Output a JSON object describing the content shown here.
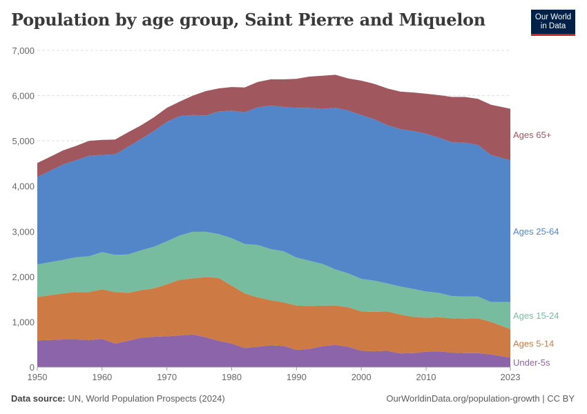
{
  "header": {
    "title": "Population by age group, Saint Pierre and Miquelon",
    "logo_line1": "Our World",
    "logo_line2": "in Data"
  },
  "footer": {
    "source_label": "Data source:",
    "source_text": "UN, World Population Prospects (2024)",
    "url_text": "OurWorldinData.org/population-growth | CC BY"
  },
  "chart_data": {
    "type": "area",
    "stacked": true,
    "title": "Population by age group, Saint Pierre and Miquelon",
    "xlabel": "",
    "ylabel": "",
    "xlim": [
      1950,
      2023
    ],
    "ylim": [
      0,
      7000
    ],
    "grid": true,
    "x_ticks": [
      1950,
      1960,
      1970,
      1980,
      1990,
      2000,
      2010,
      2023
    ],
    "x_tick_labels": [
      "1950",
      "1960",
      "1970",
      "1980",
      "1990",
      "2000",
      "2010",
      "2023"
    ],
    "y_ticks": [
      0,
      1000,
      2000,
      3000,
      4000,
      5000,
      6000,
      7000
    ],
    "y_tick_labels": [
      "0",
      "1,000",
      "2,000",
      "3,000",
      "4,000",
      "5,000",
      "6,000",
      "7,000"
    ],
    "x": [
      1950,
      1952,
      1954,
      1956,
      1958,
      1960,
      1962,
      1964,
      1966,
      1968,
      1970,
      1972,
      1974,
      1976,
      1978,
      1980,
      1982,
      1984,
      1986,
      1988,
      1990,
      1992,
      1994,
      1996,
      1998,
      2000,
      2002,
      2004,
      2006,
      2008,
      2010,
      2012,
      2014,
      2016,
      2018,
      2020,
      2023
    ],
    "series": [
      {
        "name": "Under-5s",
        "label": "Under-5s",
        "color": "#8c64a9",
        "values": [
          590,
          600,
          610,
          610,
          600,
          620,
          520,
          580,
          650,
          670,
          680,
          700,
          720,
          660,
          580,
          520,
          420,
          450,
          480,
          470,
          380,
          400,
          460,
          490,
          450,
          360,
          350,
          360,
          300,
          310,
          340,
          350,
          320,
          310,
          310,
          280,
          210
        ]
      },
      {
        "name": "Ages 5-14",
        "label": "Ages 5-14",
        "color": "#cd7a44",
        "values": [
          960,
          990,
          1020,
          1050,
          1060,
          1100,
          1140,
          1060,
          1050,
          1070,
          1150,
          1230,
          1240,
          1330,
          1390,
          1280,
          1210,
          1090,
          1000,
          960,
          980,
          950,
          900,
          870,
          870,
          870,
          870,
          870,
          860,
          800,
          750,
          750,
          760,
          760,
          770,
          720,
          630
        ]
      },
      {
        "name": "Ages 15-24",
        "label": "Ages 15-24",
        "color": "#78bc9f",
        "values": [
          720,
          730,
          740,
          770,
          790,
          820,
          820,
          850,
          880,
          920,
          950,
          980,
          1030,
          1000,
          970,
          1050,
          1090,
          1160,
          1130,
          1130,
          1060,
          1000,
          920,
          800,
          750,
          720,
          690,
          620,
          620,
          620,
          580,
          540,
          490,
          490,
          480,
          440,
          600
        ]
      },
      {
        "name": "Ages 25-64",
        "label": "Ages 25-64",
        "color": "#5286c8",
        "values": [
          1930,
          2020,
          2110,
          2140,
          2220,
          2150,
          2220,
          2380,
          2460,
          2560,
          2640,
          2640,
          2580,
          2570,
          2710,
          2820,
          2910,
          3040,
          3170,
          3190,
          3310,
          3380,
          3430,
          3570,
          3600,
          3620,
          3570,
          3500,
          3480,
          3490,
          3490,
          3430,
          3400,
          3400,
          3350,
          3250,
          3130
        ]
      },
      {
        "name": "Ages 65+",
        "label": "Ages 65+",
        "color": "#a0575e",
        "values": [
          310,
          310,
          310,
          320,
          330,
          330,
          330,
          320,
          300,
          300,
          310,
          320,
          430,
          540,
          510,
          520,
          550,
          560,
          580,
          610,
          640,
          690,
          730,
          730,
          710,
          760,
          780,
          810,
          830,
          850,
          880,
          940,
          1000,
          1010,
          1020,
          1110,
          1140
        ]
      }
    ]
  }
}
